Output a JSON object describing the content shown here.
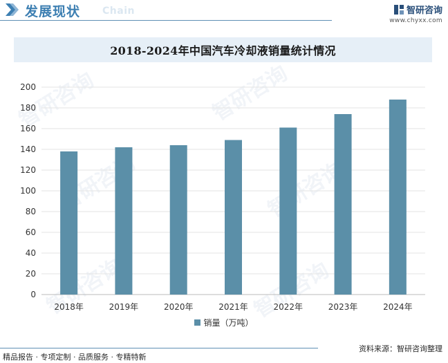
{
  "header": {
    "title": "发展现状",
    "subtitle": "Chain",
    "brand_name": "智研咨询",
    "brand_url": "www.chyxx.com"
  },
  "footer": {
    "left": "精品报告 · 专项定制 · 品质服务 · 专精特新",
    "source": "资料来源：智研咨询整理"
  },
  "watermark_text": "智研咨询",
  "chart_data": {
    "type": "bar",
    "title": "2018-2024年中国汽车冷却液销量统计情况",
    "categories": [
      "2018年",
      "2019年",
      "2020年",
      "2021年",
      "2022年",
      "2023年",
      "2024年"
    ],
    "series": [
      {
        "name": "销量（万吨）",
        "values": [
          138,
          142,
          144,
          149,
          161,
          174,
          188
        ],
        "color": "#5b8fa8"
      }
    ],
    "yticks": [
      0,
      20,
      40,
      60,
      80,
      100,
      120,
      140,
      160,
      180,
      200
    ],
    "ylim": [
      0,
      200
    ],
    "grid": true,
    "legend": "bottom-center"
  }
}
